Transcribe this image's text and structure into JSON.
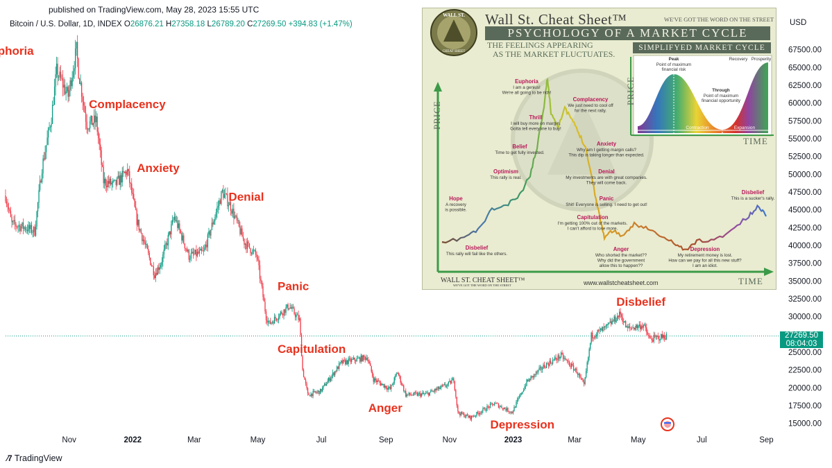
{
  "header": {
    "published": "published on TradingView.com, May 28, 2023 15:55 UTC"
  },
  "symbol": {
    "name": "Bitcoin / U.S. Dollar, 1D, INDEX",
    "o_label": "O",
    "o": "26876.21",
    "h_label": "H",
    "h": "27358.18",
    "l_label": "L",
    "l": "26789.20",
    "c_label": "C",
    "c": "27269.50",
    "change": "+394.83 (+1.47%)"
  },
  "currency": "USD",
  "price_tag": {
    "price": "27269.50",
    "countdown": "08:04:03",
    "color": "#089981"
  },
  "colors": {
    "up": "#089981",
    "down": "#f23645",
    "phase_label": "#e8321e"
  },
  "footer": {
    "logo_icon": "tradingview-logo-icon",
    "brand": "TradingView"
  },
  "chart_data": {
    "type": "candlestick",
    "title": "",
    "xlabel": "",
    "ylabel": "",
    "y_ticks": [
      15000,
      17500,
      20000,
      22500,
      25000,
      27500,
      30000,
      32500,
      35000,
      37500,
      40000,
      42500,
      45000,
      47500,
      50000,
      52500,
      55000,
      57500,
      60000,
      62500,
      65000,
      67500
    ],
    "y_tick_labels": [
      "15000.00",
      "17500.00",
      "20000.00",
      "22500.00",
      "25000.00",
      "27500.00",
      "30000.00",
      "32500.00",
      "35000.00",
      "37500.00",
      "40000.00",
      "42500.00",
      "45000.00",
      "47500.00",
      "50000.00",
      "52500.00",
      "55000.00",
      "57500.00",
      "60000.00",
      "62500.00",
      "65000.00",
      "67500.00"
    ],
    "x_ticks": [
      {
        "date": "2021-11-01",
        "label": "Nov",
        "bold": false
      },
      {
        "date": "2022-01-01",
        "label": "2022",
        "bold": true
      },
      {
        "date": "2022-03-01",
        "label": "Mar",
        "bold": false
      },
      {
        "date": "2022-05-01",
        "label": "May",
        "bold": false
      },
      {
        "date": "2022-07-01",
        "label": "Jul",
        "bold": false
      },
      {
        "date": "2022-09-01",
        "label": "Sep",
        "bold": false
      },
      {
        "date": "2022-11-01",
        "label": "Nov",
        "bold": false
      },
      {
        "date": "2023-01-01",
        "label": "2023",
        "bold": true
      },
      {
        "date": "2023-03-01",
        "label": "Mar",
        "bold": false
      },
      {
        "date": "2023-05-01",
        "label": "May",
        "bold": false
      },
      {
        "date": "2023-07-01",
        "label": "Jul",
        "bold": false
      },
      {
        "date": "2023-09-01",
        "label": "Sep",
        "bold": false
      }
    ],
    "x_range": [
      "2021-09-01",
      "2023-09-10"
    ],
    "ylim": [
      13500,
      70000
    ],
    "last_price": 27269.5,
    "series": [
      {
        "name": "Bitcoin / U.S. Dollar",
        "close_anchors": [
          [
            "2021-09-01",
            47000
          ],
          [
            "2021-09-07",
            43000
          ],
          [
            "2021-09-20",
            42500
          ],
          [
            "2021-09-29",
            42000
          ],
          [
            "2021-10-06",
            51000
          ],
          [
            "2021-10-15",
            58000
          ],
          [
            "2021-10-20",
            64500
          ],
          [
            "2021-10-31",
            61000
          ],
          [
            "2021-11-08",
            67500
          ],
          [
            "2021-11-10",
            64500
          ],
          [
            "2021-11-18",
            57000
          ],
          [
            "2021-11-27",
            57500
          ],
          [
            "2021-12-04",
            49000
          ],
          [
            "2021-12-15",
            48500
          ],
          [
            "2021-12-27",
            50500
          ],
          [
            "2022-01-05",
            43500
          ],
          [
            "2022-01-22",
            36000
          ],
          [
            "2022-01-28",
            37500
          ],
          [
            "2022-02-10",
            44000
          ],
          [
            "2022-02-24",
            38500
          ],
          [
            "2022-03-10",
            39000
          ],
          [
            "2022-03-28",
            47500
          ],
          [
            "2022-04-05",
            45500
          ],
          [
            "2022-04-18",
            40500
          ],
          [
            "2022-04-30",
            38500
          ],
          [
            "2022-05-09",
            30000
          ],
          [
            "2022-05-12",
            29000
          ],
          [
            "2022-05-31",
            31500
          ],
          [
            "2022-06-10",
            29500
          ],
          [
            "2022-06-13",
            22500
          ],
          [
            "2022-06-18",
            19000
          ],
          [
            "2022-06-30",
            19500
          ],
          [
            "2022-07-20",
            23500
          ],
          [
            "2022-08-14",
            24300
          ],
          [
            "2022-08-20",
            21200
          ],
          [
            "2022-09-05",
            19800
          ],
          [
            "2022-09-12",
            22200
          ],
          [
            "2022-09-20",
            19000
          ],
          [
            "2022-10-10",
            19100
          ],
          [
            "2022-10-31",
            20500
          ],
          [
            "2022-11-05",
            21200
          ],
          [
            "2022-11-09",
            16500
          ],
          [
            "2022-11-21",
            15800
          ],
          [
            "2022-12-14",
            17800
          ],
          [
            "2022-12-31",
            16550
          ],
          [
            "2023-01-14",
            20800
          ],
          [
            "2023-01-31",
            23100
          ],
          [
            "2023-02-16",
            24500
          ],
          [
            "2023-03-03",
            22300
          ],
          [
            "2023-03-10",
            20200
          ],
          [
            "2023-03-17",
            27300
          ],
          [
            "2023-03-31",
            28400
          ],
          [
            "2023-04-14",
            30400
          ],
          [
            "2023-04-20",
            28300
          ],
          [
            "2023-05-06",
            28800
          ],
          [
            "2023-05-12",
            26800
          ],
          [
            "2023-05-28",
            27269.5
          ]
        ]
      }
    ],
    "phase_annotations": [
      {
        "label": "Euphoria",
        "date": "2021-08-10",
        "price": 66800
      },
      {
        "label": "Complacency",
        "date": "2021-11-20",
        "price": 59300
      },
      {
        "label": "Anxiety",
        "date": "2022-01-05",
        "price": 50300
      },
      {
        "label": "Denial",
        "date": "2022-04-03",
        "price": 46300
      },
      {
        "label": "Panic",
        "date": "2022-05-20",
        "price": 33700
      },
      {
        "label": "Capitulation",
        "date": "2022-05-20",
        "price": 24900
      },
      {
        "label": "Anger",
        "date": "2022-08-15",
        "price": 16600
      },
      {
        "label": "Depression",
        "date": "2022-12-10",
        "price": 14300
      },
      {
        "label": "Disbelief",
        "date": "2023-04-10",
        "price": 31500
      }
    ]
  },
  "inset": {
    "logo_text": "WALL ST. CHEAT SHEET",
    "title": "Wall St. Cheat Sheet™",
    "tagline": "WE'VE GOT THE WORD ON THE STREET",
    "banner": "PSYCHOLOGY OF A MARKET CYCLE",
    "subtitle_lines": [
      "THE FEELINGS APPEARING",
      "AS THE MARKET FLUCTUATES."
    ],
    "simplified": "SIMPLIFYED MARKET CYCLE",
    "axis_price": "PRICE",
    "axis_time": "TIME",
    "footer_brand": "WALL ST. CHEAT SHEET™",
    "footer_sub": "WE'VE GOT THE WORD ON THE STREET",
    "url": "www.wallstcheatsheet.com",
    "mini_chart": {
      "peak": "Peak",
      "peak_desc": [
        "Point of maximum",
        "financial risk"
      ],
      "recovery": "Recovery",
      "prosperity": "Prosperity",
      "through": "Through",
      "through_desc": [
        "Point of maximum",
        "financial opportunity"
      ],
      "contraction": "Contraction",
      "expansion": "Expansion",
      "axis_price": "PRICE",
      "axis_time": "TIME"
    },
    "emotions": [
      {
        "label": "Euphoria",
        "desc": [
          "I am a genius!",
          "We're all going to be rich!"
        ]
      },
      {
        "label": "Complacency",
        "desc": [
          "We just need to cool off",
          "for the next rally."
        ]
      },
      {
        "label": "Thrill",
        "desc": [
          "I will buy more on margin.",
          "Gotta tell everyone to buy!"
        ]
      },
      {
        "label": "Anxiety",
        "desc": [
          "Why am I getting margin calls?",
          "This dip is taking longer than expected."
        ]
      },
      {
        "label": "Belief",
        "desc": [
          "Time to get fully invested."
        ]
      },
      {
        "label": "Denial",
        "desc": [
          "My investments are with great companies.",
          "They will come back."
        ]
      },
      {
        "label": "Optimism",
        "desc": [
          "This rally is real."
        ]
      },
      {
        "label": "Panic",
        "desc": [
          "Shit! Everyone is selling. I need to get out!"
        ]
      },
      {
        "label": "Hope",
        "desc": [
          "A recovery",
          "is possible."
        ]
      },
      {
        "label": "Capitulation",
        "desc": [
          "I'm getting 100% out of the markets.",
          "I can't afford to lose more."
        ]
      },
      {
        "label": "Disbelief",
        "desc": [
          "This rally will fail like the others."
        ]
      },
      {
        "label": "Anger",
        "desc": [
          "Who shorted the market??",
          "Why did the government",
          "allow this to happen??"
        ]
      },
      {
        "label": "Depression",
        "desc": [
          "My retirement money is lost.",
          "How can we pay for all this new stuff?",
          "I am an idiot."
        ]
      },
      {
        "label": "Disbelief",
        "desc": [
          "This is a sucker's rally."
        ]
      }
    ]
  }
}
